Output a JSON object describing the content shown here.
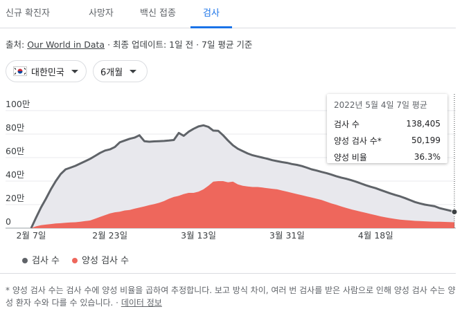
{
  "tabs": [
    "신규 확진자",
    "사망자",
    "백신 접종",
    "검사"
  ],
  "source": {
    "prefix": "출처:",
    "link": "Our World in Data",
    "suffix": "· 최종 업데이트: 1일 전 · 7일 평균 기준"
  },
  "filters": [
    "대한민국",
    "6개월"
  ],
  "chart_data": {
    "type": "area",
    "categories": [
      "2월 7일",
      null,
      null,
      null,
      null,
      null,
      null,
      null,
      null,
      null,
      null,
      null,
      null,
      null,
      null,
      null,
      "2월 23일",
      null,
      null,
      null,
      null,
      null,
      null,
      null,
      null,
      null,
      null,
      null,
      null,
      null,
      null,
      null,
      null,
      null,
      "3월 13일",
      null,
      null,
      null,
      null,
      null,
      null,
      null,
      null,
      null,
      null,
      null,
      null,
      null,
      null,
      null,
      null,
      null,
      "3월 31일",
      null,
      null,
      null,
      null,
      null,
      null,
      null,
      null,
      null,
      null,
      null,
      null,
      null,
      null,
      null,
      null,
      null,
      "4월 18일",
      null,
      null,
      null,
      null,
      null,
      null,
      null,
      null,
      null,
      null,
      null,
      null,
      null,
      null,
      null,
      null
    ],
    "series": [
      {
        "name": "검사 수",
        "color": "#5f6368",
        "area_color": "#e8e8ed",
        "values": [
          0,
          90000,
          176000,
          250000,
          330000,
          400000,
          460000,
          500000,
          515000,
          530000,
          550000,
          570000,
          590000,
          615000,
          640000,
          660000,
          670000,
          690000,
          730000,
          745000,
          760000,
          770000,
          790000,
          740000,
          735000,
          738000,
          740000,
          742000,
          745000,
          750000,
          810000,
          785000,
          820000,
          845000,
          865000,
          875000,
          862000,
          830000,
          828000,
          790000,
          745000,
          705000,
          675000,
          655000,
          635000,
          620000,
          610000,
          600000,
          590000,
          578000,
          570000,
          562000,
          555000,
          545000,
          538000,
          528000,
          515000,
          500000,
          490000,
          478000,
          468000,
          455000,
          442000,
          430000,
          420000,
          408000,
          395000,
          380000,
          365000,
          352000,
          340000,
          325000,
          310000,
          295000,
          282000,
          270000,
          255000,
          238000,
          222000,
          210000,
          200000,
          193000,
          186000,
          170000,
          160000,
          150000,
          138405
        ]
      },
      {
        "name": "양성 검사 수",
        "color": "#ee675c",
        "values": [
          0,
          15000,
          25000,
          30000,
          35000,
          40000,
          42000,
          45000,
          48000,
          50000,
          55000,
          60000,
          65000,
          80000,
          95000,
          110000,
          125000,
          135000,
          140000,
          150000,
          155000,
          165000,
          175000,
          185000,
          195000,
          205000,
          215000,
          230000,
          250000,
          265000,
          275000,
          290000,
          300000,
          300000,
          310000,
          330000,
          360000,
          395000,
          400000,
          400000,
          390000,
          395000,
          372000,
          360000,
          355000,
          350000,
          350000,
          345000,
          340000,
          335000,
          330000,
          320000,
          310000,
          300000,
          290000,
          280000,
          270000,
          260000,
          250000,
          240000,
          225000,
          210000,
          198000,
          185000,
          172000,
          160000,
          150000,
          140000,
          130000,
          120000,
          110000,
          100000,
          92000,
          85000,
          78000,
          72000,
          68000,
          65000,
          62000,
          60000,
          58000,
          56000,
          55000,
          54000,
          53000,
          52000,
          50199
        ]
      }
    ],
    "ylim": [
      0,
      1000000
    ],
    "yticks": [
      0,
      {
        "value": 200000,
        "label": "20만"
      },
      {
        "value": 400000,
        "label": "40만"
      },
      {
        "value": 600000,
        "label": "60만"
      },
      {
        "value": 800000,
        "label": "80만"
      },
      {
        "value": 1000000,
        "label": "100만"
      }
    ],
    "grid": true,
    "tooltip": {
      "title": "2022년 5월 4일 7일 평균",
      "rows": [
        [
          "검사 수",
          "138,405"
        ],
        [
          "양성 검사 수*",
          "50,199"
        ],
        [
          "양성 비율",
          "36.3%"
        ]
      ]
    }
  },
  "footnote": "* 양성 검사 수는 검사 수에 양성 비율을 곱하여 추정합니다. 보고 방식 차이, 여러 번 검사를 받은 사람으로 인해 양성 검사 수는 양성 환자 수와 다를 수 있습니다. ·",
  "footnote_link": "데이터 정보"
}
